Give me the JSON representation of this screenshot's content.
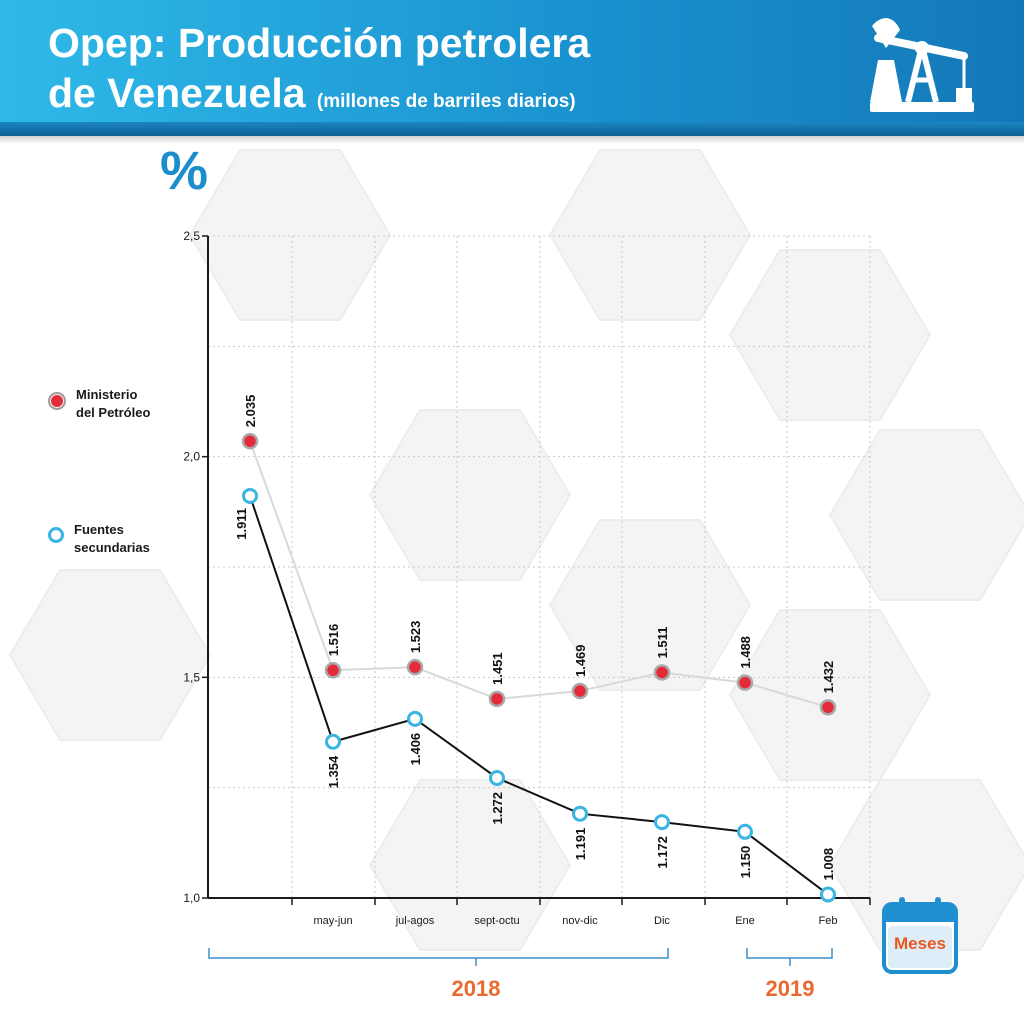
{
  "header": {
    "title_line1": "Opep: Producción petrolera",
    "title_line2": "de Venezuela",
    "subtitle": "(millones de barriles diarios)"
  },
  "y_unit_label": "%",
  "legend": {
    "series_a_line1": "Ministerio",
    "series_a_line2": "del Petróleo",
    "series_b_line1": "Fuentes",
    "series_b_line2": "secundarias"
  },
  "calendar_label": "Meses",
  "year_groups": [
    "2018",
    "2019"
  ],
  "colors": {
    "header_start": "#2fb9e8",
    "header_end": "#1478b8",
    "ministerio": "#e52b3a",
    "ministerio_line": "#d9d9d9",
    "fuentes": "#3ab5e3",
    "fuentes_line": "#111111",
    "year_accent": "#ea6a2e",
    "bracket": "#3a8fc8"
  },
  "chart_data": {
    "type": "line",
    "categories": [
      "",
      "may-jun",
      "jul-agos",
      "sept-octu",
      "nov-dic",
      "Dic",
      "Ene",
      "Feb"
    ],
    "series": [
      {
        "name": "Ministerio del Petróleo",
        "values": [
          2.035,
          1.516,
          1.523,
          1.451,
          1.469,
          1.511,
          1.488,
          1.432
        ],
        "labels": [
          "2.035",
          "1.516",
          "1.523",
          "1.451",
          "1.469",
          "1.511",
          "1.488",
          "1.432"
        ]
      },
      {
        "name": "Fuentes secundarias",
        "values": [
          1.911,
          1.354,
          1.406,
          1.272,
          1.191,
          1.172,
          1.15,
          1.008
        ],
        "labels": [
          "1.911",
          "1.354",
          "1.406",
          "1.272",
          "1.191",
          "1.172",
          "1.150",
          "1.008"
        ]
      }
    ],
    "y_ticks": [
      "1,0",
      "1,5",
      "2,0",
      "2,5"
    ],
    "y_tick_values": [
      1.0,
      1.5,
      2.0,
      2.5
    ],
    "ylim": [
      1.0,
      2.5
    ],
    "grid": true,
    "xlabel": "Meses",
    "ylabel": "%"
  }
}
